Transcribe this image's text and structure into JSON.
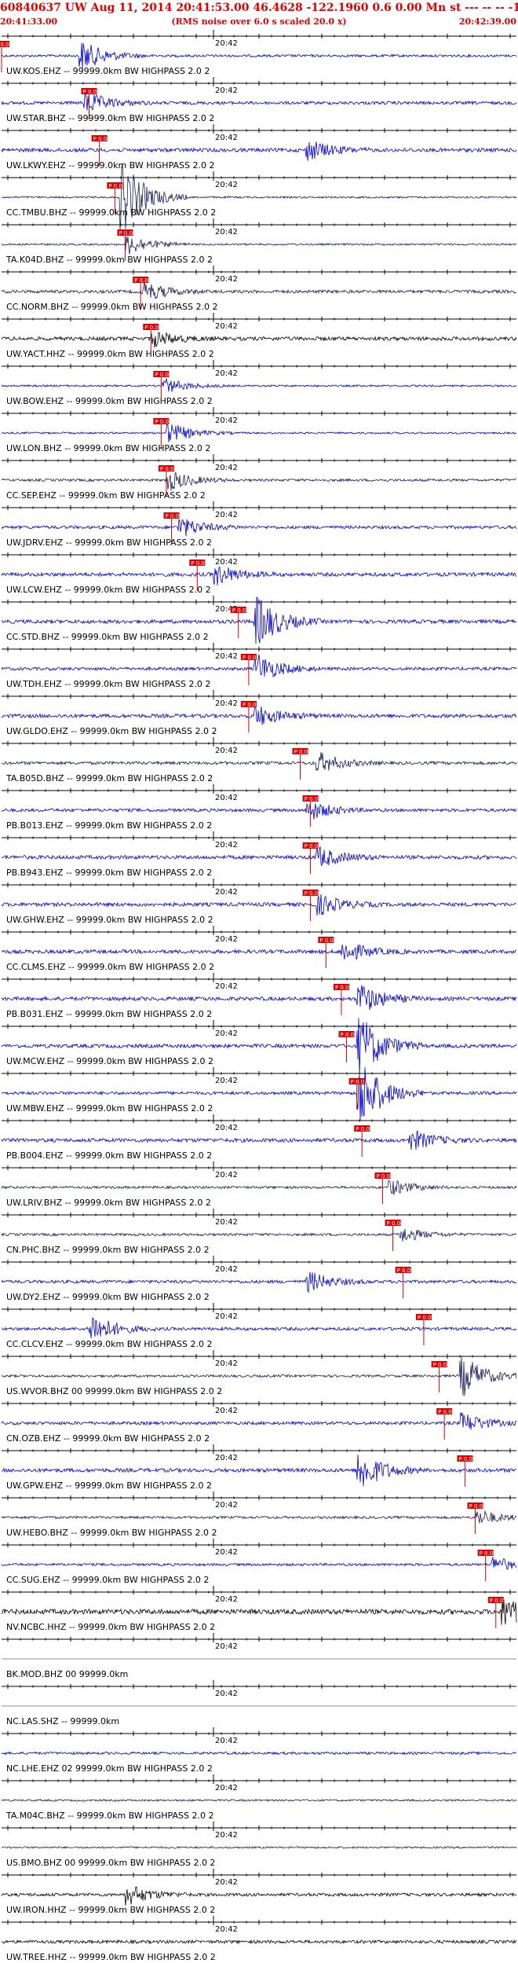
{
  "header": {
    "title": "60840637 UW Aug 11, 2014 20:41:53.00   46.4628 -122.1960  0.6 0.00 Mn st --- -- --  -1",
    "start_time": "20:41:33.00",
    "subtitle": "(RMS noise over 6.0 s scaled 20.0 x)",
    "end_time": "20:42:39.00"
  },
  "tick_label": "20:42",
  "pick_label": "P 0.0",
  "colors": {
    "trace": "#0000cc",
    "trace_dark": "#1a1a5a",
    "pick": "#e00000",
    "header": "#e00000"
  },
  "traces": [
    {
      "label": "UW.KOS.EHZ -- 99999.0km BW  HIGHPASS  2.0  2",
      "color": "#0000cc",
      "pick": 0.0,
      "amp": 0.4,
      "burst": 0.16,
      "bamp": 3
    },
    {
      "label": "UW.STAR.BHZ -- 99999.0km BW  HIGHPASS  2.0  2",
      "color": "#0000cc",
      "pick": 0.17,
      "amp": 0.5,
      "burst": 0.17,
      "bamp": 2
    },
    {
      "label": "UW.LKWY.EHZ -- 99999.0km BW  HIGHPASS  2.0  2",
      "color": "#0000cc",
      "pick": 0.19,
      "amp": 0.6,
      "burst": 0.6,
      "bamp": 2
    },
    {
      "label": "CC.TMBU.BHZ -- 99999.0km BW  HIGHPASS  2.0  2",
      "color": "#1a1a5a",
      "pick": 0.22,
      "amp": 0.3,
      "burst": 0.24,
      "bamp": 7
    },
    {
      "label": "TA.K04D.BHZ -- 99999.0km BW  HIGHPASS  2.0  2",
      "color": "#1a1a5a",
      "pick": 0.24,
      "amp": 0.3,
      "burst": 0.25,
      "bamp": 2
    },
    {
      "label": "CC.NORM.BHZ -- 99999.0km BW  HIGHPASS  2.0  2",
      "color": "#1a1a5a",
      "pick": 0.27,
      "amp": 0.5,
      "burst": 0.28,
      "bamp": 2
    },
    {
      "label": "UW.YACT.HHZ -- 99999.0km BW  HIGHPASS  2.0  2",
      "color": "#000000",
      "pick": 0.29,
      "amp": 0.6,
      "burst": 0.3,
      "bamp": 1.5
    },
    {
      "label": "UW.BOW.EHZ -- 99999.0km BW  HIGHPASS  2.0  2",
      "color": "#0000cc",
      "pick": 0.31,
      "amp": 0.3,
      "burst": 0.32,
      "bamp": 1.5
    },
    {
      "label": "UW.LON.BHZ -- 99999.0km BW  HIGHPASS  2.0  2",
      "color": "#0000cc",
      "pick": 0.31,
      "amp": 0.3,
      "burst": 0.33,
      "bamp": 2
    },
    {
      "label": "CC.SEP.EHZ -- 99999.0km BW  HIGHPASS  2.0  2",
      "color": "#1a1a5a",
      "pick": 0.32,
      "amp": 0.4,
      "burst": 0.33,
      "bamp": 2
    },
    {
      "label": "UW.JDRV.EHZ -- 99999.0km BW  HIGHPASS  2.0  2",
      "color": "#0000cc",
      "pick": 0.33,
      "amp": 0.5,
      "burst": 0.35,
      "bamp": 2
    },
    {
      "label": "UW.LCW.EHZ -- 99999.0km BW  HIGHPASS  2.0  2",
      "color": "#0000cc",
      "pick": 0.38,
      "amp": 0.6,
      "burst": 0.42,
      "bamp": 2
    },
    {
      "label": "CC.STD.BHZ -- 99999.0km BW  HIGHPASS  2.0  2",
      "color": "#0000cc",
      "pick": 0.46,
      "amp": 0.6,
      "burst": 0.5,
      "bamp": 5
    },
    {
      "label": "UW.TDH.EHZ -- 99999.0km BW  HIGHPASS  2.0  2",
      "color": "#0000cc",
      "pick": 0.48,
      "amp": 0.5,
      "burst": 0.5,
      "bamp": 3
    },
    {
      "label": "UW.GLDO.EHZ -- 99999.0km BW  HIGHPASS  2.0  2",
      "color": "#0000cc",
      "pick": 0.48,
      "amp": 0.6,
      "burst": 0.5,
      "bamp": 2
    },
    {
      "label": "TA.B05D.BHZ -- 99999.0km BW  HIGHPASS  2.0  2",
      "color": "#1a1a5a",
      "pick": 0.58,
      "amp": 0.5,
      "burst": 0.62,
      "bamp": 2
    },
    {
      "label": "PB.B013.EHZ -- 99999.0km BW  HIGHPASS  2.0  2",
      "color": "#0000cc",
      "pick": 0.6,
      "amp": 0.5,
      "burst": 0.6,
      "bamp": 2
    },
    {
      "label": "PB.B943.EHZ -- 99999.0km BW  HIGHPASS  2.0  2",
      "color": "#0000cc",
      "pick": 0.6,
      "amp": 0.6,
      "burst": 0.62,
      "bamp": 2
    },
    {
      "label": "UW.GHW.EHZ -- 99999.0km BW  HIGHPASS  2.0  2",
      "color": "#0000cc",
      "pick": 0.6,
      "amp": 0.6,
      "burst": 0.62,
      "bamp": 2
    },
    {
      "label": "CC.CLMS.EHZ -- 99999.0km BW  HIGHPASS  2.0  2",
      "color": "#0000cc",
      "pick": 0.63,
      "amp": 0.6,
      "burst": 0.67,
      "bamp": 2
    },
    {
      "label": "PB.B031.EHZ -- 99999.0km BW  HIGHPASS  2.0  2",
      "color": "#0000cc",
      "pick": 0.66,
      "amp": 0.6,
      "burst": 0.7,
      "bamp": 3
    },
    {
      "label": "UW.MCW.EHZ -- 99999.0km BW  HIGHPASS  2.0  2",
      "color": "#0000cc",
      "pick": 0.67,
      "amp": 0.6,
      "burst": 0.7,
      "bamp": 6
    },
    {
      "label": "UW.MBW.EHZ -- 99999.0km BW  HIGHPASS  2.0  2",
      "color": "#0000cc",
      "pick": 0.69,
      "amp": 0.5,
      "burst": 0.7,
      "bamp": 7
    },
    {
      "label": "PB.B004.EHZ -- 99999.0km BW  HIGHPASS  2.0  2",
      "color": "#0000cc",
      "pick": 0.7,
      "amp": 0.6,
      "burst": 0.8,
      "bamp": 2
    },
    {
      "label": "UW.LRIV.BHZ -- 99999.0km BW  HIGHPASS  2.0  2",
      "color": "#1a1a5a",
      "pick": 0.74,
      "amp": 0.4,
      "burst": 0.76,
      "bamp": 1.5
    },
    {
      "label": "CN.PHC.BHZ -- 99999.0km BW  HIGHPASS  2.0  2",
      "color": "#1a1a5a",
      "pick": 0.76,
      "amp": 0.4,
      "burst": 0.78,
      "bamp": 1.5
    },
    {
      "label": "UW.DY2.EHZ -- 99999.0km BW  HIGHPASS  2.0  2",
      "color": "#0000cc",
      "pick": 0.78,
      "amp": 0.5,
      "burst": 0.6,
      "bamp": 2
    },
    {
      "label": "CC.CLCV.EHZ -- 99999.0km BW  HIGHPASS  2.0  2",
      "color": "#0000cc",
      "pick": 0.82,
      "amp": 0.5,
      "burst": 0.18,
      "bamp": 3
    },
    {
      "label": "US.WVOR.BHZ 00 99999.0km BW  HIGHPASS  2.0  2",
      "color": "#1a1a5a",
      "pick": 0.85,
      "amp": 0.4,
      "burst": 0.9,
      "bamp": 4
    },
    {
      "label": "CN.OZB.EHZ -- 99999.0km BW  HIGHPASS  2.0  2",
      "color": "#0000cc",
      "pick": 0.86,
      "amp": 0.5,
      "burst": 0.9,
      "bamp": 2
    },
    {
      "label": "UW.GPW.EHZ -- 99999.0km BW  HIGHPASS  2.0  2",
      "color": "#0000cc",
      "pick": 0.9,
      "amp": 0.6,
      "burst": 0.7,
      "bamp": 4
    },
    {
      "label": "UW.HEBO.BHZ -- 99999.0km BW  HIGHPASS  2.0  2",
      "color": "#1a1a5a",
      "pick": 0.92,
      "amp": 0.4,
      "burst": 0.93,
      "bamp": 1.5
    },
    {
      "label": "CC.SUG.EHZ -- 99999.0km BW  HIGHPASS  2.0  2",
      "color": "#0000cc",
      "pick": 0.94,
      "amp": 0.4,
      "burst": 0.96,
      "bamp": 1.5
    },
    {
      "label": "NV.NCBC.HHZ -- 99999.0km BW  HIGHPASS  2.0  2",
      "color": "#000000",
      "pick": 0.96,
      "amp": 0.8,
      "burst": 0.98,
      "bamp": 3
    },
    {
      "label": "BK.MOD.BHZ 00 99999.0km",
      "color": "#1a1a5a",
      "pick": -1,
      "amp": 0.0,
      "burst": -1,
      "bamp": 0
    },
    {
      "label": "NC.LAS.SHZ -- 99999.0km",
      "color": "#1a1a5a",
      "pick": -1,
      "amp": 0.0,
      "burst": -1,
      "bamp": 0
    },
    {
      "label": "NC.LHE.EHZ 02 99999.0km BW  HIGHPASS  2.0  2",
      "color": "#0000cc",
      "pick": -1,
      "amp": 0.4,
      "burst": -1,
      "bamp": 0
    },
    {
      "label": "TA.M04C.BHZ -- 99999.0km BW  HIGHPASS  2.0  2",
      "color": "#1a1a5a",
      "pick": -1,
      "amp": 0.3,
      "burst": -1,
      "bamp": 0
    },
    {
      "label": "US.BMO.BHZ 00 99999.0km BW  HIGHPASS  2.0  2",
      "color": "#1a1a5a",
      "pick": -1,
      "amp": 0.3,
      "burst": -1,
      "bamp": 0
    },
    {
      "label": "UW.IRON.HHZ -- 99999.0km BW  HIGHPASS  2.0  2",
      "color": "#000000",
      "pick": -1,
      "amp": 0.5,
      "burst": 0.25,
      "bamp": 2
    },
    {
      "label": "UW.TREE.HHZ -- 99999.0km BW  HIGHPASS  2.0  2",
      "color": "#000000",
      "pick": -1,
      "amp": 0.5,
      "burst": -1,
      "bamp": 0
    }
  ]
}
